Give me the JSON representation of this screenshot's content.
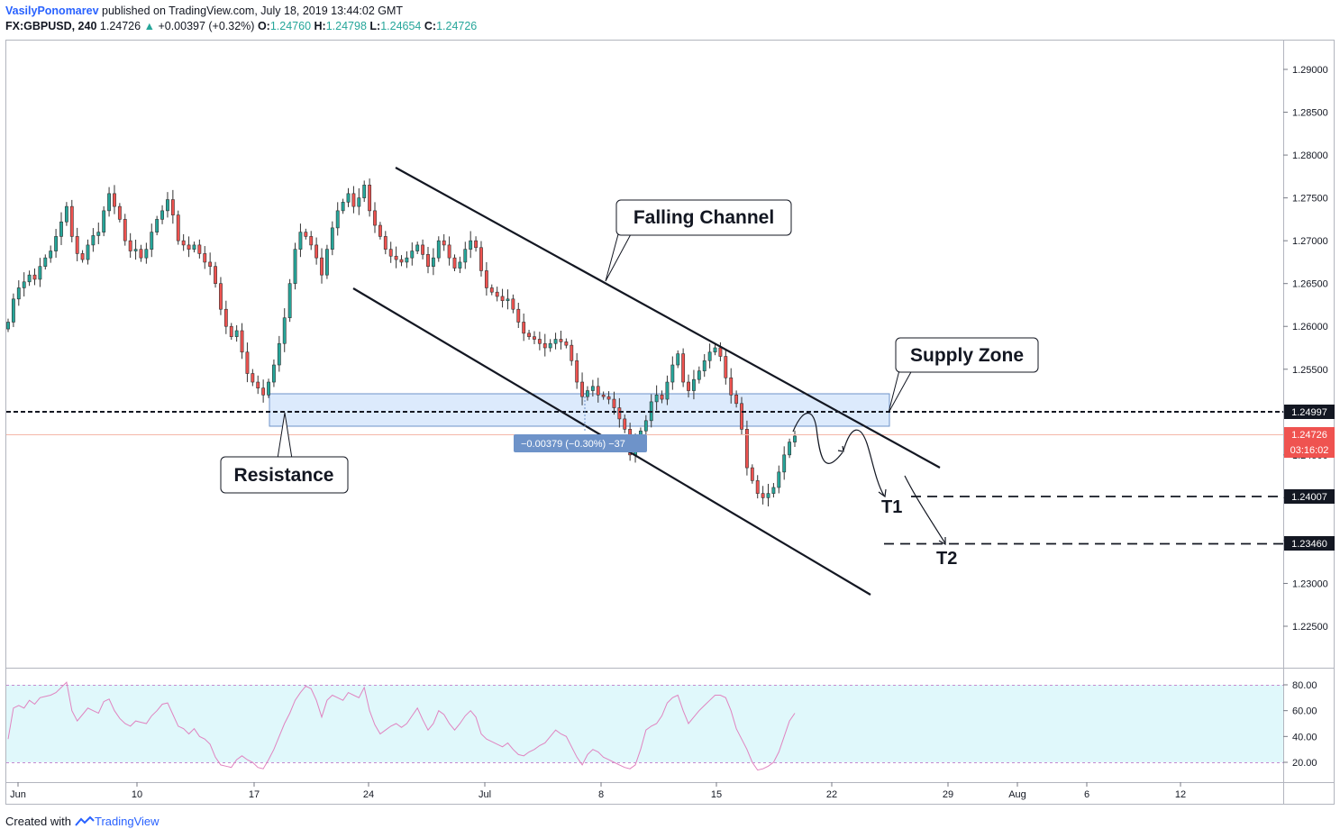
{
  "header": {
    "author": "VasilyPonomarev",
    "published": "published on TradingView.com, July 18, 2019 13:44:02 GMT",
    "symbol": "FX:GBPUSD, 240",
    "last": "1.24726",
    "change": "+0.00397 (+0.32%)",
    "o_label": "O:",
    "o_value": "1.24760",
    "h_label": "H:",
    "h_value": "1.24798",
    "l_label": "L:",
    "l_value": "1.24654",
    "c_label": "C:",
    "c_value": "1.24726"
  },
  "footer": {
    "created_with": "Created with",
    "brand": "TradingView"
  },
  "colors": {
    "bull": "#26a69a",
    "bear": "#ef5350",
    "rsi": "#e084c0",
    "zone": "#d6e6fb",
    "rsi_band": "#e0f8fb",
    "measure": "#6e93c9"
  },
  "annotations": {
    "falling_channel": "Falling Channel",
    "supply_zone": "Supply Zone",
    "resistance": "Resistance",
    "t1": "T1",
    "t2": "T2",
    "measure": "−0.00379 (−0.30%) −37"
  },
  "chart_data": [
    {
      "type": "candlestick",
      "symbol": "FX:GBPUSD",
      "interval": "240",
      "ylim": [
        1.22,
        1.291
      ],
      "y_ticks": [
        "1.29000",
        "1.28500",
        "1.28000",
        "1.27500",
        "1.27000",
        "1.26500",
        "1.26000",
        "1.25500",
        "1.25000",
        "1.24500",
        "1.24000",
        "1.23500",
        "1.23000",
        "1.22500"
      ],
      "price_labels": {
        "level": "1.24997",
        "last": "1.24726",
        "countdown": "03:16:02",
        "t1": "1.24007",
        "t2": "1.23460"
      },
      "x_labels": [
        "Jun",
        "10",
        "17",
        "24",
        "Jul",
        "8",
        "15",
        "22",
        "29",
        "Aug",
        "6",
        "12"
      ],
      "series": [
        {
          "name": "Price",
          "close": [
            1.2605,
            1.2632,
            1.2645,
            1.2652,
            1.266,
            1.2655,
            1.267,
            1.268,
            1.2688,
            1.2705,
            1.2722,
            1.274,
            1.2705,
            1.2685,
            1.2678,
            1.2695,
            1.2706,
            1.271,
            1.2735,
            1.2755,
            1.274,
            1.2725,
            1.27,
            1.2688,
            1.269,
            1.268,
            1.269,
            1.271,
            1.2725,
            1.2735,
            1.2748,
            1.273,
            1.27,
            1.2695,
            1.269,
            1.2695,
            1.2685,
            1.2675,
            1.267,
            1.265,
            1.262,
            1.26,
            1.2588,
            1.2595,
            1.257,
            1.2545,
            1.2535,
            1.2528,
            1.252,
            1.2535,
            1.2555,
            1.258,
            1.261,
            1.265,
            1.269,
            1.271,
            1.2705,
            1.2695,
            1.268,
            1.266,
            1.269,
            1.2715,
            1.2735,
            1.2745,
            1.2755,
            1.274,
            1.275,
            1.2765,
            1.2735,
            1.2718,
            1.2705,
            1.269,
            1.2682,
            1.2678,
            1.2675,
            1.268,
            1.2688,
            1.2695,
            1.2684,
            1.267,
            1.268,
            1.27,
            1.2695,
            1.268,
            1.2668,
            1.2675,
            1.269,
            1.27,
            1.2692,
            1.2665,
            1.2645,
            1.264,
            1.2635,
            1.263,
            1.2632,
            1.262,
            1.2605,
            1.2592,
            1.2588,
            1.2585,
            1.258,
            1.2575,
            1.258,
            1.2585,
            1.2582,
            1.2578,
            1.256,
            1.2535,
            1.2518,
            1.2525,
            1.253,
            1.252,
            1.2518,
            1.2515,
            1.2505,
            1.2492,
            1.248,
            1.245,
            1.2465,
            1.2478,
            1.249,
            1.2512,
            1.252,
            1.2515,
            1.2535,
            1.2555,
            1.2568,
            1.2535,
            1.2525,
            1.2538,
            1.2548,
            1.256,
            1.257,
            1.2575,
            1.2565,
            1.254,
            1.252,
            1.251,
            1.248,
            1.2435,
            1.242,
            1.2405,
            1.24,
            1.2405,
            1.2412,
            1.243,
            1.245,
            1.2465,
            1.2472
          ]
        },
        {
          "name": "RSI",
          "values": [
            38,
            62,
            64,
            62,
            68,
            65,
            70,
            71,
            72,
            74,
            78,
            82,
            60,
            52,
            57,
            62,
            60,
            58,
            67,
            69,
            60,
            54,
            50,
            48,
            52,
            51,
            50,
            56,
            60,
            65,
            66,
            57,
            48,
            46,
            42,
            46,
            40,
            38,
            34,
            24,
            18,
            17,
            16,
            22,
            25,
            22,
            20,
            16,
            15,
            22,
            30,
            40,
            50,
            58,
            68,
            74,
            79,
            77,
            68,
            55,
            68,
            72,
            70,
            68,
            74,
            72,
            70,
            78,
            60,
            49,
            42,
            45,
            48,
            50,
            47,
            50,
            56,
            62,
            53,
            45,
            50,
            60,
            57,
            50,
            45,
            50,
            56,
            60,
            55,
            42,
            38,
            36,
            34,
            32,
            35,
            30,
            26,
            25,
            28,
            30,
            33,
            35,
            40,
            45,
            42,
            40,
            32,
            24,
            18,
            26,
            30,
            28,
            24,
            22,
            20,
            18,
            16,
            15,
            18,
            30,
            45,
            48,
            50,
            56,
            66,
            70,
            72,
            60,
            50,
            55,
            60,
            64,
            68,
            72,
            72,
            70,
            60,
            46,
            38,
            30,
            20,
            14,
            15,
            17,
            20,
            28,
            40,
            52,
            58,
            62
          ]
        }
      ],
      "rsi_levels": [
        "80.00",
        "60.00",
        "40.00",
        "20.00"
      ]
    }
  ]
}
